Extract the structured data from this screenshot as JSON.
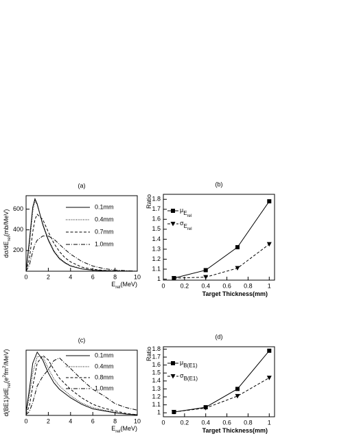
{
  "chart_data": [
    {
      "type": "line",
      "panel_label": "(a)",
      "ylabel_parts": [
        {
          "text": "dσ/dE"
        },
        {
          "text": "rel",
          "shift": "sub"
        },
        {
          "text": "(mb/MeV)"
        }
      ],
      "xlabel_parts": [
        {
          "text": "E"
        },
        {
          "text": "rel",
          "shift": "sub"
        },
        {
          "text": "(MeV)"
        }
      ],
      "x": [
        0,
        0.3,
        0.6,
        0.8,
        1,
        1.5,
        2,
        2.5,
        3,
        3.5,
        4,
        5,
        6,
        7,
        8,
        9,
        10
      ],
      "series": [
        {
          "name": "0.1mm",
          "dash": "solid",
          "color": "#000",
          "values": [
            0,
            300,
            620,
            700,
            650,
            450,
            300,
            190,
            120,
            80,
            50,
            22,
            10,
            5,
            2,
            1,
            0
          ]
        },
        {
          "name": "0.4mm",
          "dash": "dotted",
          "color": "#000",
          "values": [
            0,
            250,
            580,
            680,
            640,
            460,
            310,
            200,
            130,
            85,
            55,
            25,
            12,
            6,
            3,
            1,
            0
          ]
        },
        {
          "name": "0.7mm",
          "dash": "dashed",
          "color": "#000",
          "values": [
            0,
            120,
            380,
            500,
            550,
            500,
            380,
            270,
            190,
            130,
            90,
            40,
            18,
            8,
            4,
            2,
            0
          ]
        },
        {
          "name": "1.0mm",
          "dash": "dashdot",
          "color": "#000",
          "values": [
            0,
            60,
            190,
            260,
            300,
            340,
            340,
            310,
            260,
            210,
            165,
            95,
            50,
            25,
            12,
            5,
            0
          ]
        }
      ],
      "xlim": [
        0,
        10
      ],
      "xticks": [
        0,
        2,
        4,
        6,
        8,
        10
      ],
      "ylim": [
        0,
        730
      ],
      "yticks": [
        200,
        400,
        600
      ]
    },
    {
      "type": "line",
      "panel_label": "(b)",
      "ylabel_parts": [
        {
          "text": "Ratio"
        }
      ],
      "xlabel_parts": [
        {
          "text": "Target Thickness(mm)"
        }
      ],
      "x": [
        0.1,
        0.4,
        0.7,
        1
      ],
      "series": [
        {
          "name": "μ",
          "name_sub": [
            "E",
            "rel"
          ],
          "dash": "solid",
          "marker": "square",
          "color": "#000",
          "values": [
            1.01,
            1.09,
            1.32,
            1.78
          ]
        },
        {
          "name": "σ",
          "name_sub": [
            "E",
            "rel"
          ],
          "dash": "dashed",
          "marker": "triangle-down",
          "color": "#000",
          "values": [
            1.01,
            1.02,
            1.11,
            1.35
          ]
        }
      ],
      "xlim": [
        0,
        1.05
      ],
      "xticks": [
        0,
        0.2,
        0.4,
        0.6,
        0.8,
        1
      ],
      "ylim": [
        0.99,
        1.85
      ],
      "yticks": [
        1,
        1.1,
        1.2,
        1.3,
        1.4,
        1.5,
        1.6,
        1.7,
        1.8
      ]
    },
    {
      "type": "line",
      "panel_label": "(c)",
      "ylabel_parts": [
        {
          "text": "d(BE1)/dE"
        },
        {
          "text": "rel",
          "shift": "sub"
        },
        {
          "text": "(e"
        },
        {
          "text": "2",
          "shift": "super"
        },
        {
          "text": "fm"
        },
        {
          "text": "2",
          "shift": "super"
        },
        {
          "text": "/MeV)"
        }
      ],
      "xlabel_parts": [
        {
          "text": "E"
        },
        {
          "text": "rel",
          "shift": "sub"
        },
        {
          "text": "(MeV)"
        }
      ],
      "x": [
        0,
        0.3,
        0.6,
        1,
        1.5,
        2,
        2.5,
        3,
        4,
        5,
        6,
        7,
        8,
        9,
        10
      ],
      "series": [
        {
          "name": "0.1mm",
          "dash": "solid",
          "color": "#000",
          "values": [
            0.05,
            0.4,
            0.8,
            0.97,
            0.85,
            0.65,
            0.5,
            0.4,
            0.27,
            0.17,
            0.1,
            0.07,
            0.04,
            0.02,
            0.01
          ]
        },
        {
          "name": "0.4mm",
          "dash": "dotted",
          "color": "#000",
          "values": [
            0.04,
            0.3,
            0.65,
            0.9,
            0.9,
            0.72,
            0.56,
            0.45,
            0.3,
            0.19,
            0.12,
            0.08,
            0.05,
            0.02,
            0.01
          ]
        },
        {
          "name": "0.8mm",
          "dash": "dashed",
          "color": "#000",
          "values": [
            0.02,
            0.15,
            0.45,
            0.8,
            0.92,
            0.85,
            0.7,
            0.57,
            0.4,
            0.27,
            0.17,
            0.11,
            0.07,
            0.03,
            0.01
          ]
        },
        {
          "name": "1.0mm",
          "dash": "dashdot",
          "color": "#000",
          "values": [
            0.01,
            0.06,
            0.2,
            0.45,
            0.6,
            0.7,
            0.84,
            0.88,
            0.72,
            0.55,
            0.4,
            0.3,
            0.18,
            0.12,
            0.08
          ]
        }
      ],
      "xlim": [
        0,
        10
      ],
      "xticks": [
        0,
        2,
        4,
        6,
        8,
        10
      ],
      "ylim": [
        0,
        1
      ]
    },
    {
      "type": "line",
      "panel_label": "(d)",
      "ylabel_parts": [
        {
          "text": "Ratio"
        }
      ],
      "xlabel_parts": [
        {
          "text": "Target Thickness(mm)"
        }
      ],
      "x": [
        0.1,
        0.4,
        0.7,
        1
      ],
      "series": [
        {
          "name": "μ",
          "name_sub": [
            "B(E1)"
          ],
          "dash": "solid",
          "marker": "square",
          "color": "#000",
          "values": [
            1.01,
            1.07,
            1.3,
            1.78
          ]
        },
        {
          "name": "σ",
          "name_sub": [
            "B(E1)"
          ],
          "dash": "dashed",
          "marker": "triangle-down",
          "color": "#000",
          "values": [
            1.01,
            1.06,
            1.21,
            1.44
          ]
        }
      ],
      "xlim": [
        0,
        1.05
      ],
      "xticks": [
        0,
        0.2,
        0.4,
        0.6,
        0.8,
        1
      ],
      "ylim": [
        0.95,
        1.83
      ],
      "yticks": [
        1,
        1.1,
        1.2,
        1.3,
        1.4,
        1.5,
        1.6,
        1.7,
        1.8
      ]
    }
  ]
}
